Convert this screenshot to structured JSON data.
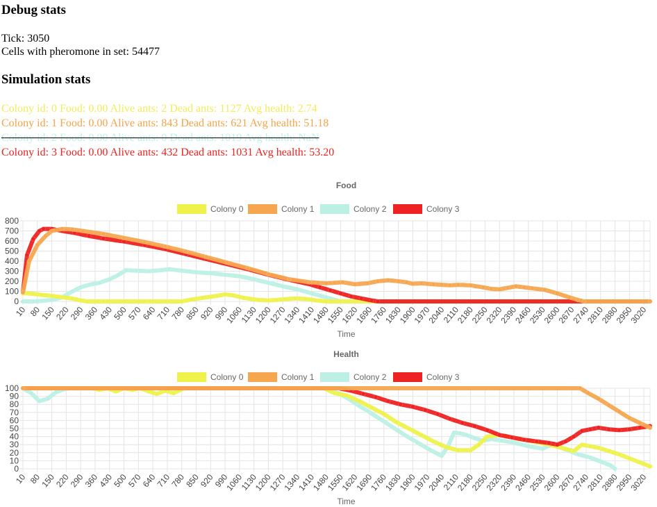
{
  "debug": {
    "heading": "Debug stats",
    "tick_label": "Tick:",
    "tick": "3050",
    "cells_label": "Cells with pheromone in set:",
    "cells": "54477"
  },
  "simulation": {
    "heading": "Simulation stats",
    "colonies": [
      {
        "text": "Colony id: 0 Food: 0.00 Alive ants: 2 Dead ants: 1127 Avg health: 2.74",
        "color": "#f2ec5a",
        "dead": false
      },
      {
        "text": "Colony id: 1 Food: 0.00 Alive ants: 843 Dead ants: 621 Avg health: 51.18",
        "color": "#f3a34b",
        "dead": false
      },
      {
        "text": "Colony id: 2 Food: 0.00 Alive ants: 0 Dead ants: 1019 Avg health: NaN",
        "color": "#bdf0e5",
        "dead": true
      },
      {
        "text": "Colony id: 3 Food: 0.00 Alive ants: 432 Dead ants: 1031 Avg health: 53.20",
        "color": "#ee2222",
        "dead": false
      }
    ]
  },
  "colors": {
    "Colony 0": "#eef24a",
    "Colony 1": "#f5a64f",
    "Colony 2": "#bdf0e5",
    "Colony 3": "#ee2222"
  },
  "chart_data": [
    {
      "type": "line",
      "title": "Food",
      "xlabel": "Time",
      "ylabel": "",
      "ylim": [
        0,
        800
      ],
      "yticks": [
        0,
        100,
        200,
        300,
        400,
        500,
        600,
        700,
        800
      ],
      "xlim": [
        10,
        3050
      ],
      "xticks": [
        10,
        80,
        150,
        220,
        290,
        360,
        430,
        500,
        570,
        640,
        710,
        780,
        850,
        920,
        990,
        1060,
        1130,
        1200,
        1270,
        1340,
        1410,
        1480,
        1550,
        1620,
        1690,
        1760,
        1830,
        1900,
        1970,
        2040,
        2110,
        2180,
        2250,
        2320,
        2390,
        2460,
        2530,
        2600,
        2670,
        2740,
        2810,
        2880,
        2950,
        3020
      ],
      "grid": true,
      "legend_position": "top",
      "series": [
        {
          "name": "Colony 0",
          "x": [
            10,
            30,
            60,
            100,
            150,
            200,
            250,
            290,
            320,
            400,
            500,
            600,
            700,
            780,
            830,
            880,
            950,
            990,
            1030,
            1080,
            1150,
            1200,
            1240,
            1280,
            1330,
            1380,
            1430,
            1480,
            1550,
            3050
          ],
          "y": [
            80,
            80,
            75,
            65,
            55,
            42,
            28,
            10,
            0,
            0,
            0,
            0,
            0,
            0,
            20,
            35,
            55,
            70,
            60,
            35,
            15,
            10,
            15,
            22,
            30,
            25,
            10,
            0,
            0,
            0
          ]
        },
        {
          "name": "Colony 1",
          "x": [
            10,
            40,
            80,
            120,
            150,
            200,
            250,
            300,
            400,
            500,
            600,
            700,
            800,
            900,
            1000,
            1100,
            1200,
            1300,
            1400,
            1440,
            1480,
            1520,
            1560,
            1620,
            1680,
            1730,
            1780,
            1830,
            1870,
            1900,
            1940,
            1970,
            2000,
            2040,
            2080,
            2120,
            2180,
            2240,
            2280,
            2320,
            2360,
            2400,
            2440,
            2480,
            2540,
            2600,
            2660,
            2700,
            2730,
            3050
          ],
          "y": [
            90,
            400,
            560,
            650,
            700,
            720,
            715,
            700,
            670,
            630,
            590,
            545,
            495,
            440,
            385,
            330,
            270,
            220,
            190,
            185,
            180,
            185,
            190,
            170,
            180,
            200,
            210,
            200,
            190,
            175,
            180,
            175,
            170,
            165,
            160,
            165,
            160,
            140,
            125,
            120,
            135,
            150,
            140,
            130,
            115,
            80,
            40,
            15,
            0,
            0
          ]
        },
        {
          "name": "Colony 2",
          "x": [
            10,
            60,
            100,
            150,
            200,
            250,
            290,
            330,
            380,
            430,
            470,
            510,
            560,
            620,
            680,
            720,
            780,
            850,
            920,
            990,
            1060,
            1130,
            1200,
            1270,
            1340,
            1410,
            1480,
            1550,
            3050
          ],
          "y": [
            0,
            0,
            5,
            15,
            40,
            100,
            140,
            165,
            185,
            220,
            260,
            310,
            305,
            300,
            310,
            320,
            305,
            290,
            280,
            265,
            250,
            220,
            185,
            150,
            120,
            80,
            40,
            0,
            0
          ]
        },
        {
          "name": "Colony 3",
          "x": [
            10,
            30,
            60,
            90,
            110,
            150,
            200,
            260,
            330,
            400,
            500,
            600,
            700,
            800,
            900,
            1000,
            1100,
            1200,
            1300,
            1400,
            1450,
            1500,
            1550,
            1600,
            1650,
            1700,
            1730,
            3050
          ],
          "y": [
            90,
            460,
            620,
            700,
            720,
            720,
            700,
            680,
            650,
            625,
            595,
            560,
            520,
            470,
            420,
            370,
            320,
            265,
            215,
            170,
            140,
            110,
            80,
            50,
            30,
            10,
            0,
            0
          ]
        }
      ]
    },
    {
      "type": "line",
      "title": "Health",
      "xlabel": "Time",
      "ylabel": "",
      "ylim": [
        0,
        100
      ],
      "yticks": [
        0,
        10,
        20,
        30,
        40,
        50,
        60,
        70,
        80,
        90,
        100
      ],
      "xlim": [
        10,
        3050
      ],
      "xticks": [
        10,
        80,
        150,
        220,
        290,
        360,
        430,
        500,
        570,
        640,
        710,
        780,
        850,
        920,
        990,
        1060,
        1130,
        1200,
        1270,
        1340,
        1410,
        1480,
        1550,
        1620,
        1690,
        1760,
        1830,
        1900,
        1970,
        2040,
        2110,
        2180,
        2250,
        2320,
        2390,
        2460,
        2530,
        2600,
        2670,
        2740,
        2810,
        2880,
        2950,
        3020
      ],
      "grid": true,
      "legend_position": "top",
      "series": [
        {
          "name": "Colony 0",
          "x": [
            10,
            350,
            380,
            420,
            460,
            500,
            540,
            580,
            620,
            660,
            700,
            740,
            790,
            1470,
            1520,
            1580,
            1640,
            1700,
            1760,
            1820,
            1880,
            1940,
            2000,
            2060,
            2120,
            2180,
            2220,
            2260,
            2320,
            2400,
            2480,
            2560,
            2620,
            2680,
            2720,
            2760,
            2800,
            2850,
            2900,
            2950,
            3000,
            3050
          ],
          "y": [
            100,
            100,
            98,
            100,
            96,
            100,
            98,
            100,
            96,
            93,
            97,
            94,
            100,
            100,
            94,
            91,
            84,
            76,
            68,
            58,
            50,
            42,
            34,
            27,
            23,
            23,
            30,
            40,
            42,
            38,
            34,
            30,
            26,
            22,
            30,
            28,
            26,
            22,
            18,
            13,
            8,
            3
          ]
        },
        {
          "name": "Colony 1",
          "x": [
            10,
            2710,
            2750,
            2800,
            2850,
            2900,
            2950,
            3000,
            3050
          ],
          "y": [
            100,
            100,
            94,
            87,
            79,
            71,
            63,
            57,
            51
          ]
        },
        {
          "name": "Colony 2",
          "x": [
            10,
            50,
            90,
            130,
            170,
            200,
            230,
            1480,
            1520,
            1560,
            1600,
            1640,
            1680,
            1740,
            1800,
            1860,
            1920,
            1980,
            2040,
            2070,
            2100,
            2130,
            2160,
            2200,
            2240,
            2280,
            2330,
            2380,
            2430,
            2480,
            2530,
            2580,
            2620,
            2660,
            2700,
            2760,
            2820,
            2860,
            2880
          ],
          "y": [
            100,
            94,
            84,
            87,
            95,
            98,
            100,
            100,
            96,
            91,
            85,
            78,
            72,
            62,
            52,
            42,
            33,
            24,
            16,
            28,
            45,
            44,
            42,
            38,
            35,
            37,
            35,
            33,
            30,
            27,
            25,
            31,
            26,
            22,
            18,
            14,
            8,
            4,
            0
          ]
        },
        {
          "name": "Colony 3",
          "x": [
            10,
            1540,
            1600,
            1660,
            1720,
            1780,
            1840,
            1900,
            1960,
            2020,
            2080,
            2140,
            2200,
            2260,
            2320,
            2380,
            2440,
            2500,
            2560,
            2600,
            2640,
            2680,
            2720,
            2760,
            2800,
            2850,
            2900,
            2950,
            3000,
            3050
          ],
          "y": [
            100,
            100,
            97,
            93,
            89,
            84,
            80,
            77,
            73,
            68,
            62,
            57,
            53,
            48,
            42,
            39,
            36,
            34,
            32,
            30,
            34,
            40,
            47,
            49,
            51,
            49,
            48,
            49,
            51,
            53
          ]
        }
      ]
    }
  ]
}
